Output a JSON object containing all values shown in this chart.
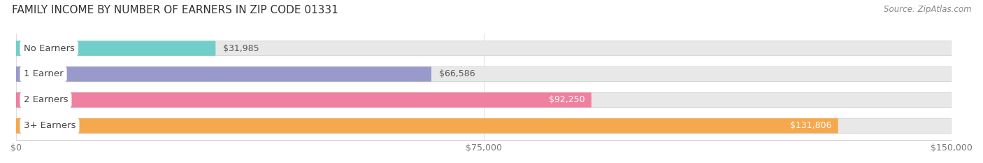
{
  "title": "FAMILY INCOME BY NUMBER OF EARNERS IN ZIP CODE 01331",
  "source": "Source: ZipAtlas.com",
  "categories": [
    "No Earners",
    "1 Earner",
    "2 Earners",
    "3+ Earners"
  ],
  "values": [
    31985,
    66586,
    92250,
    131806
  ],
  "bar_colors": [
    "#72CEC8",
    "#9999CC",
    "#F080A0",
    "#F5A84E"
  ],
  "bar_bg_color": "#E8E8E8",
  "value_labels": [
    "$31,985",
    "$66,586",
    "$92,250",
    "$131,806"
  ],
  "value_inside": [
    false,
    false,
    true,
    true
  ],
  "xmax": 150000,
  "xtick_labels": [
    "$0",
    "$75,000",
    "$150,000"
  ],
  "background_color": "#FFFFFF",
  "title_fontsize": 11,
  "source_fontsize": 8.5,
  "label_fontsize": 9.5,
  "value_fontsize": 9,
  "tick_fontsize": 9
}
